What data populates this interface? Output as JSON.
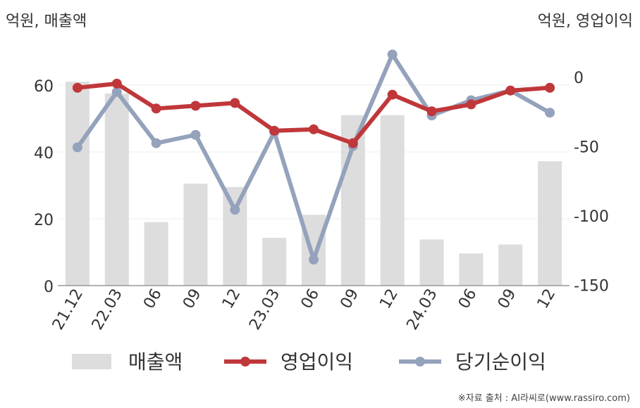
{
  "left_axis_title": "억원, 매출액",
  "right_axis_title": "억원, 영업이익",
  "source": "※자료 출처 : AI라씨로(www.rassiro.com)",
  "colors": {
    "revenue": "#dddddd",
    "operating_profit": "#c0373a",
    "net_income": "#95a2bc",
    "axis": "#999999",
    "grid": "#eeeeee",
    "text": "#333333"
  },
  "chart_data": {
    "type": "bar",
    "categories": [
      "21.12",
      "22.03",
      "06",
      "09",
      "12",
      "23.03",
      "06",
      "09",
      "12",
      "24.03",
      "06",
      "09",
      "12"
    ],
    "left_axis": {
      "ylim": [
        0,
        70
      ],
      "ticks": [
        0,
        20,
        40,
        60
      ]
    },
    "right_axis": {
      "ylim": [
        -150,
        15
      ],
      "ticks": [
        0,
        -50,
        -100,
        -150
      ]
    },
    "series": [
      {
        "name": "매출액",
        "type": "bar",
        "axis": "left",
        "values": [
          61,
          57.5,
          19,
          30.5,
          29.5,
          14.3,
          21.2,
          51,
          51,
          13.8,
          9.6,
          12.3,
          37.2
        ]
      },
      {
        "name": "영업이익",
        "type": "line",
        "axis": "right",
        "values": [
          -8,
          -5,
          -23,
          -21,
          -19,
          -39,
          -38,
          -48,
          -13,
          -25,
          -20,
          -10,
          -8
        ]
      },
      {
        "name": "당기순이익",
        "type": "line",
        "axis": "right",
        "values": [
          -51,
          -11,
          -48,
          -42,
          -96,
          -40,
          -132,
          -50,
          16,
          -28,
          -17,
          -10,
          -26
        ]
      }
    ],
    "legend_position": "bottom"
  }
}
